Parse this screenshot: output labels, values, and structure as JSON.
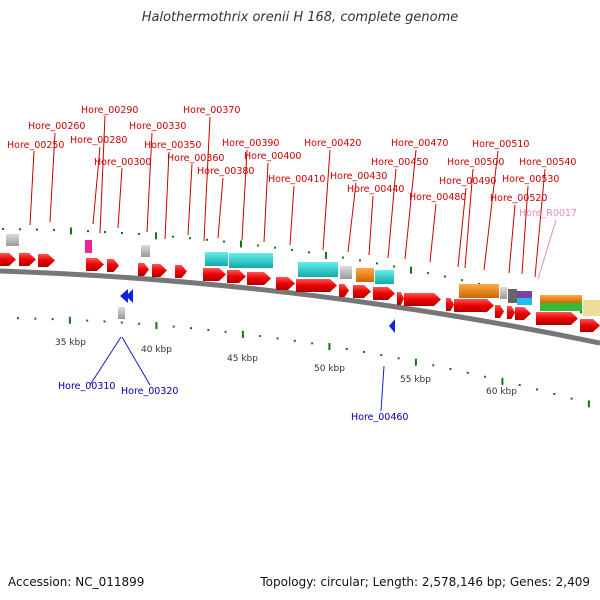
{
  "title": "Halothermothrix orenii H 168, complete genome",
  "footer": {
    "accession": "Accession: NC_011899",
    "summary": "Topology: circular; Length: 2,578,146 bp; Genes: 2,409"
  },
  "colors": {
    "label_red": "#cc0000",
    "label_blue": "#0000aa",
    "label_pink": "#ee88bb",
    "gene_red": "#ee0000",
    "cyan": "#22cccc",
    "orange": "#ee8811",
    "gray": "#bbbbbb",
    "green": "#33bb33",
    "tick_green": "#117711"
  },
  "scale": [
    "35 kbp",
    "40 kbp",
    "45 kbp",
    "50 kbp",
    "55 kbp",
    "60 kbp"
  ],
  "top_labels": [
    "Hore_00250",
    "Hore_00260",
    "Hore_00280",
    "Hore_00290",
    "Hore_00300",
    "Hore_00330",
    "Hore_00350",
    "Hore_00360",
    "Hore_00370",
    "Hore_00380",
    "Hore_00390",
    "Hore_00400",
    "Hore_00410",
    "Hore_00420",
    "Hore_00430",
    "Hore_00440",
    "Hore_00450",
    "Hore_00470",
    "Hore_00480",
    "Hore_00490",
    "Hore_00500",
    "Hore_00510",
    "Hore_00520",
    "Hore_00530",
    "Hore_00540"
  ],
  "rna_label": "Hore_R0017",
  "bottom_labels": [
    "Hore_00310",
    "Hore_00320",
    "Hore_00460"
  ]
}
